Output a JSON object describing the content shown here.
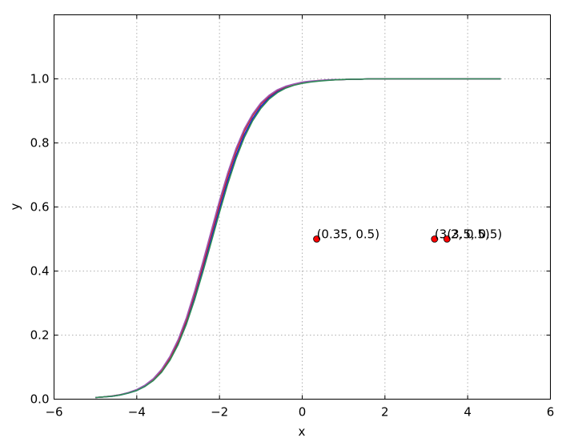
{
  "chart_data": {
    "type": "line",
    "title": "",
    "xlabel": "x",
    "ylabel": "y",
    "xlim": [
      -6,
      6
    ],
    "ylim": [
      0,
      1.2
    ],
    "x_ticks": [
      -6,
      -4,
      -2,
      0,
      2,
      4,
      6
    ],
    "x_tick_labels": [
      "−6",
      "−4",
      "−2",
      "0",
      "2",
      "4",
      "6"
    ],
    "y_ticks": [
      0.0,
      0.2,
      0.4,
      0.6,
      0.8,
      1.0
    ],
    "y_tick_labels": [
      "0.0",
      "0.2",
      "0.4",
      "0.6",
      "0.8",
      "1.0"
    ],
    "grid": true,
    "x": [
      -5.0,
      -4.8,
      -4.6,
      -4.4,
      -4.2,
      -4.0,
      -3.8,
      -3.6,
      -3.4,
      -3.2,
      -3.0,
      -2.8,
      -2.6,
      -2.4,
      -2.2,
      -2.0,
      -1.8,
      -1.6,
      -1.4,
      -1.2,
      -1.0,
      -0.8,
      -0.6,
      -0.4,
      -0.2,
      0.0,
      0.2,
      0.4,
      0.6,
      0.8,
      1.0,
      1.2,
      1.4,
      1.6,
      1.8,
      2.0,
      2.2,
      2.4,
      2.6,
      2.8,
      3.0,
      3.2,
      3.4,
      3.6,
      3.8,
      4.0,
      4.2,
      4.4,
      4.6,
      4.8
    ],
    "series": [
      {
        "color": "#1f1fcc",
        "values": [
          0.005,
          0.007,
          0.009,
          0.013,
          0.019,
          0.027,
          0.04,
          0.059,
          0.086,
          0.124,
          0.174,
          0.239,
          0.317,
          0.406,
          0.5,
          0.594,
          0.683,
          0.761,
          0.826,
          0.876,
          0.914,
          0.941,
          0.96,
          0.973,
          0.981,
          0.987,
          0.991,
          0.994,
          0.996,
          0.997,
          0.998,
          0.999,
          0.999,
          1.0,
          1.0,
          1.0,
          1.0,
          1.0,
          1.0,
          1.0,
          1.0,
          1.0,
          1.0,
          1.0,
          1.0,
          1.0,
          1.0,
          1.0,
          1.0,
          1.0
        ]
      },
      {
        "color": "#cc2222",
        "values": [
          0.005,
          0.007,
          0.01,
          0.014,
          0.02,
          0.029,
          0.042,
          0.062,
          0.09,
          0.129,
          0.181,
          0.248,
          0.33,
          0.42,
          0.515,
          0.609,
          0.697,
          0.774,
          0.837,
          0.885,
          0.921,
          0.946,
          0.964,
          0.976,
          0.983,
          0.989,
          0.992,
          0.995,
          0.996,
          0.997,
          0.998,
          0.999,
          0.999,
          1.0,
          1.0,
          1.0,
          1.0,
          1.0,
          1.0,
          1.0,
          1.0,
          1.0,
          1.0,
          1.0,
          1.0,
          1.0,
          1.0,
          1.0,
          1.0,
          1.0
        ]
      },
      {
        "color": "#9b59b6",
        "values": [
          0.005,
          0.007,
          0.01,
          0.014,
          0.021,
          0.03,
          0.044,
          0.064,
          0.093,
          0.133,
          0.186,
          0.254,
          0.338,
          0.43,
          0.525,
          0.62,
          0.707,
          0.783,
          0.844,
          0.89,
          0.925,
          0.949,
          0.966,
          0.977,
          0.984,
          0.99,
          0.993,
          0.995,
          0.997,
          0.998,
          0.998,
          0.999,
          0.999,
          1.0,
          1.0,
          1.0,
          1.0,
          1.0,
          1.0,
          1.0,
          1.0,
          1.0,
          1.0,
          1.0,
          1.0,
          1.0,
          1.0,
          1.0,
          1.0,
          1.0
        ]
      },
      {
        "color": "#2e8b57",
        "values": [
          0.005,
          0.007,
          0.009,
          0.013,
          0.019,
          0.027,
          0.04,
          0.058,
          0.084,
          0.121,
          0.17,
          0.234,
          0.311,
          0.398,
          0.49,
          0.583,
          0.672,
          0.751,
          0.817,
          0.869,
          0.908,
          0.937,
          0.957,
          0.971,
          0.98,
          0.986,
          0.99,
          0.993,
          0.995,
          0.997,
          0.998,
          0.999,
          0.999,
          1.0,
          1.0,
          1.0,
          1.0,
          1.0,
          1.0,
          1.0,
          1.0,
          1.0,
          1.0,
          1.0,
          1.0,
          1.0,
          1.0,
          1.0,
          1.0,
          1.0
        ]
      }
    ],
    "points": [
      {
        "x": 0.35,
        "y": 0.5,
        "label": "(0.35, 0.5)"
      },
      {
        "x": 3.2,
        "y": 0.5,
        "label": "(3.2, 0.5)"
      },
      {
        "x": 3.5,
        "y": 0.5,
        "label": "(3.5, 0.5)"
      }
    ],
    "point_color": "#ff0000"
  }
}
